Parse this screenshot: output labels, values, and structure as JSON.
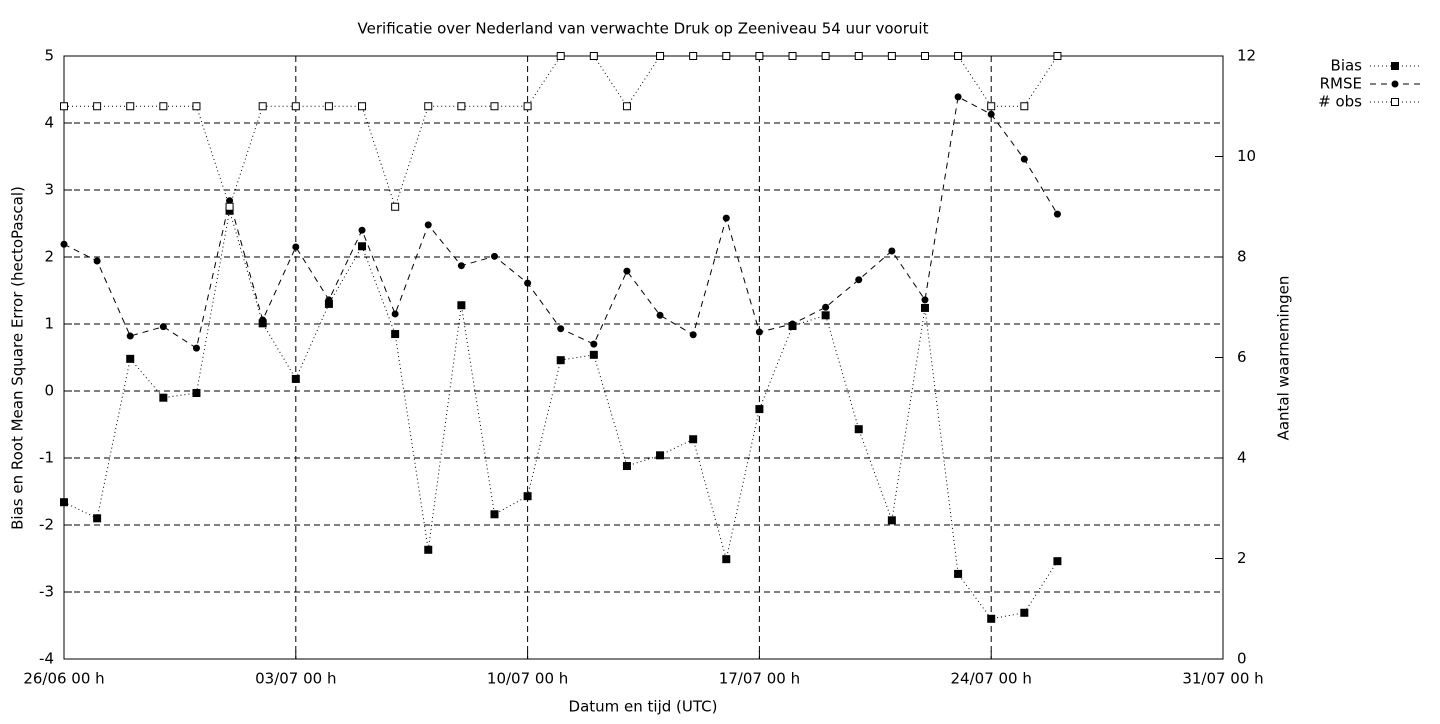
{
  "chart_data": {
    "type": "line",
    "title": "Verificatie over Nederland van verwachte Druk op Zeeniveau 54 uur vooruit",
    "x_label": "Datum en tijd (UTC)",
    "y_label": "Bias en Root Mean Square Error (hectoPascal)",
    "y2_label": "Aantal waarnemingen",
    "x": [
      0,
      1,
      2,
      3,
      4,
      5,
      6,
      7,
      8,
      9,
      10,
      11,
      12,
      13,
      14,
      15,
      16,
      17,
      18,
      19,
      20,
      21,
      22,
      23,
      24,
      25,
      26,
      27,
      28,
      29,
      30
    ],
    "xlim": [
      0,
      35
    ],
    "xticks": [
      {
        "value": 0,
        "label": "26/06 00 h"
      },
      {
        "value": 7,
        "label": "03/07 00 h"
      },
      {
        "value": 14,
        "label": "10/07 00 h"
      },
      {
        "value": 21,
        "label": "17/07 00 h"
      },
      {
        "value": 28,
        "label": "24/07 00 h"
      },
      {
        "value": 35,
        "label": "31/07 00 h"
      }
    ],
    "ylim": [
      -4,
      5
    ],
    "yticks": [
      -4,
      -3,
      -2,
      -1,
      0,
      1,
      2,
      3,
      4,
      5
    ],
    "y2lim": [
      0,
      12
    ],
    "y2ticks": [
      0,
      2,
      4,
      6,
      8,
      10,
      12
    ],
    "grid": true,
    "series": [
      {
        "name": "Bias",
        "color": "#000000",
        "marker": "square",
        "dash": "1,3",
        "values": [
          -1.66,
          -1.9,
          0.48,
          -0.1,
          -0.03,
          2.69,
          1.01,
          0.18,
          1.3,
          2.16,
          0.85,
          -2.37,
          1.28,
          -1.84,
          -1.57,
          0.46,
          0.54,
          -1.12,
          -0.96,
          -0.72,
          -2.51,
          -0.27,
          0.97,
          1.13,
          -0.57,
          -1.93,
          1.24,
          -2.73,
          -3.4,
          -3.31,
          -2.54
        ]
      },
      {
        "name": "RMSE",
        "color": "#000000",
        "marker": "circle",
        "dash": "6,5",
        "values": [
          2.19,
          1.94,
          0.82,
          0.96,
          0.64,
          2.84,
          1.06,
          2.15,
          1.36,
          2.4,
          1.15,
          2.48,
          1.87,
          2.01,
          1.61,
          0.93,
          0.7,
          1.79,
          1.13,
          0.84,
          2.58,
          0.88,
          1.0,
          1.25,
          1.66,
          2.09,
          1.36,
          4.39,
          4.13,
          3.46,
          2.64
        ]
      },
      {
        "name": "# obs",
        "color": "#000000",
        "marker": "open-square",
        "dash": "1,3",
        "axis": "y2",
        "values": [
          11,
          11,
          11,
          11,
          11,
          9,
          11,
          11,
          11,
          11,
          9,
          11,
          11,
          11,
          11,
          12,
          12,
          11,
          12,
          12,
          12,
          12,
          12,
          12,
          12,
          12,
          12,
          12,
          11,
          11,
          12
        ]
      }
    ]
  }
}
